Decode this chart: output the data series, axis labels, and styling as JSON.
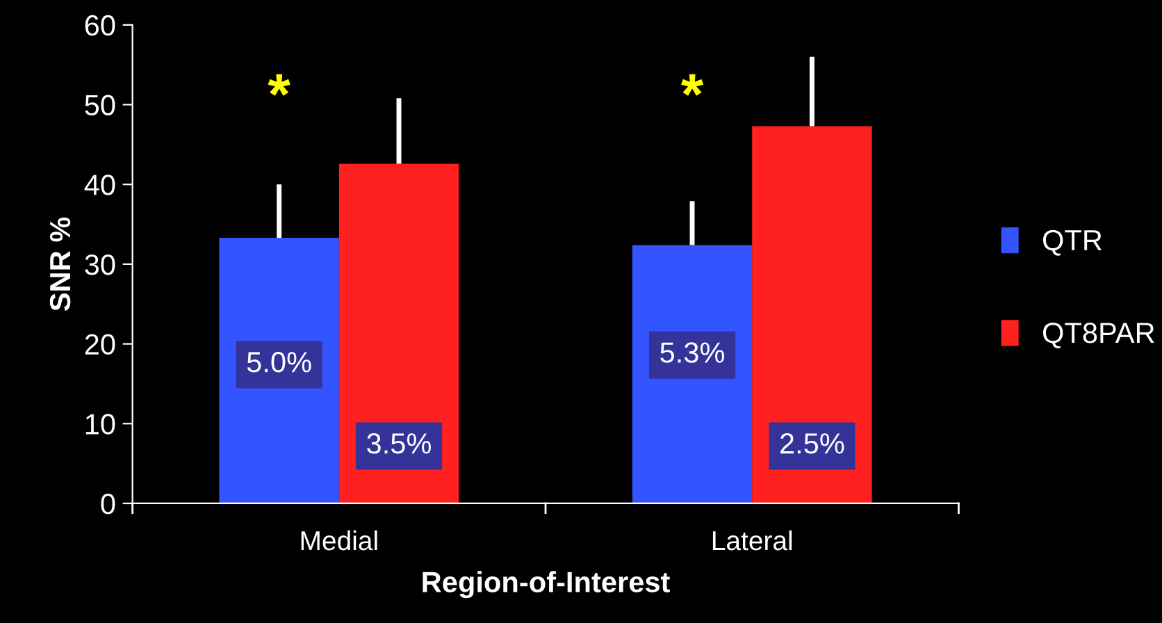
{
  "chart_data": {
    "type": "bar",
    "xlabel": "Region-of-Interest",
    "ylabel": "SNR %",
    "categories": [
      "Medial",
      "Lateral"
    ],
    "series": [
      {
        "name": "QTR",
        "color": "#3355ff",
        "values": [
          33.3,
          32.4
        ],
        "errors": [
          [
            33.3,
            40.0
          ],
          [
            32.4,
            37.9
          ]
        ]
      },
      {
        "name": "QT8PAR",
        "color": "#ff2020",
        "values": [
          42.6,
          47.3
        ],
        "errors": [
          [
            42.6,
            50.8
          ],
          [
            47.3,
            56.0
          ]
        ]
      }
    ],
    "annotations": [
      "*",
      "*",
      "5.0%",
      "3.5%",
      "5.3%",
      "2.5%"
    ],
    "ylim": [
      0,
      60
    ],
    "yticks": [
      0,
      10,
      20,
      30,
      40,
      50,
      60
    ],
    "legend": "right",
    "grid": false
  }
}
